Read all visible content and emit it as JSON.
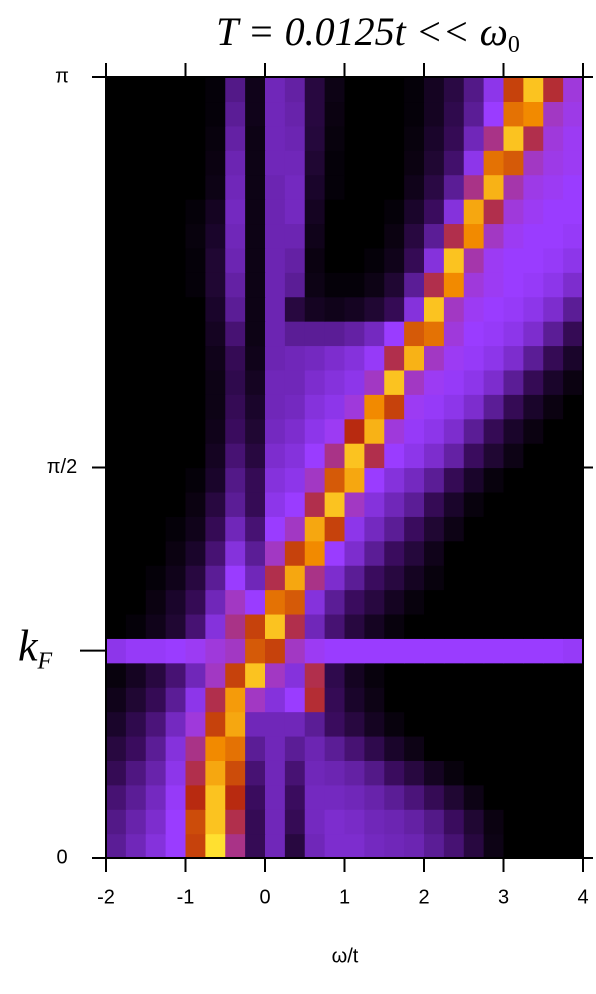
{
  "chart_data": {
    "type": "heatmap",
    "title": "T = 0.0125t << ω",
    "title_subscript": "0",
    "xlabel": "ω/t",
    "xlim": [
      -2,
      4
    ],
    "xticks": [
      -2,
      -1,
      0,
      1,
      2,
      3,
      4
    ],
    "ylim": [
      0,
      3.14159
    ],
    "yticks": [
      0,
      {
        "value": 1.5708,
        "label": "π/2"
      },
      {
        "value": 3.14159,
        "label": "π"
      }
    ],
    "annotations": [
      {
        "text": "k",
        "subscript": "F",
        "y": 0.834
      }
    ],
    "colormap": [
      {
        "value": 0,
        "color": "#000000"
      },
      {
        "value": 0.22,
        "color": "#3a0c5e"
      },
      {
        "value": 0.45,
        "color": "#9a3cff"
      },
      {
        "value": 0.65,
        "color": "#b82a10"
      },
      {
        "value": 0.85,
        "color": "#f28a00"
      },
      {
        "value": 1,
        "color": "#ffe030"
      }
    ],
    "z": [
      [
        0.3,
        0.35,
        0.4,
        0.45,
        0.7,
        1.0,
        0.55,
        0.2,
        0.35,
        0.15,
        0.35,
        0.38,
        0.38,
        0.36,
        0.35,
        0.34,
        0.3,
        0.25,
        0.15,
        0.05,
        0,
        0,
        0,
        0
      ],
      [
        0.28,
        0.33,
        0.38,
        0.45,
        0.72,
        0.95,
        0.6,
        0.2,
        0.35,
        0.2,
        0.36,
        0.38,
        0.37,
        0.35,
        0.34,
        0.32,
        0.28,
        0.22,
        0.12,
        0.04,
        0,
        0,
        0,
        0
      ],
      [
        0.25,
        0.3,
        0.36,
        0.44,
        0.65,
        0.95,
        0.65,
        0.22,
        0.35,
        0.22,
        0.36,
        0.36,
        0.35,
        0.33,
        0.3,
        0.26,
        0.2,
        0.12,
        0.05,
        0,
        0,
        0,
        0,
        0
      ],
      [
        0.2,
        0.27,
        0.33,
        0.42,
        0.6,
        0.9,
        0.72,
        0.25,
        0.35,
        0.25,
        0.35,
        0.34,
        0.32,
        0.28,
        0.22,
        0.15,
        0.08,
        0.03,
        0,
        0,
        0,
        0,
        0,
        0
      ],
      [
        0.15,
        0.22,
        0.3,
        0.4,
        0.55,
        0.85,
        0.8,
        0.3,
        0.35,
        0.3,
        0.34,
        0.3,
        0.25,
        0.18,
        0.1,
        0.05,
        0,
        0,
        0,
        0,
        0,
        0,
        0,
        0
      ],
      [
        0.1,
        0.18,
        0.26,
        0.36,
        0.48,
        0.7,
        0.9,
        0.35,
        0.35,
        0.35,
        0.3,
        0.22,
        0.15,
        0.08,
        0.03,
        0,
        0,
        0,
        0,
        0,
        0,
        0,
        0,
        0
      ],
      [
        0.06,
        0.12,
        0.2,
        0.3,
        0.42,
        0.6,
        0.88,
        0.5,
        0.4,
        0.45,
        0.62,
        0.2,
        0.1,
        0.05,
        0,
        0,
        0,
        0,
        0,
        0,
        0,
        0,
        0,
        0
      ],
      [
        0.03,
        0.08,
        0.15,
        0.25,
        0.35,
        0.5,
        0.7,
        0.95,
        0.5,
        0.4,
        0.6,
        0.18,
        0.08,
        0.03,
        0,
        0,
        0,
        0,
        0,
        0,
        0,
        0,
        0,
        0
      ],
      [
        0.42,
        0.44,
        0.44,
        0.45,
        0.46,
        0.48,
        0.5,
        0.75,
        0.7,
        0.5,
        0.46,
        0.45,
        0.45,
        0.45,
        0.45,
        0.45,
        0.45,
        0.45,
        0.45,
        0.45,
        0.45,
        0.45,
        0.45,
        0.44
      ],
      [
        0,
        0.02,
        0.06,
        0.12,
        0.25,
        0.4,
        0.55,
        0.7,
        0.95,
        0.6,
        0.35,
        0.25,
        0.15,
        0.08,
        0.03,
        0,
        0,
        0,
        0,
        0,
        0,
        0,
        0,
        0
      ],
      [
        0,
        0,
        0.04,
        0.1,
        0.2,
        0.35,
        0.5,
        0.45,
        0.8,
        0.75,
        0.4,
        0.3,
        0.22,
        0.15,
        0.08,
        0.03,
        0,
        0,
        0,
        0,
        0,
        0,
        0,
        0
      ],
      [
        0,
        0,
        0.02,
        0.06,
        0.15,
        0.3,
        0.45,
        0.35,
        0.6,
        0.9,
        0.55,
        0.38,
        0.3,
        0.22,
        0.15,
        0.08,
        0.03,
        0,
        0,
        0,
        0,
        0,
        0,
        0
      ],
      [
        0,
        0,
        0,
        0.04,
        0.1,
        0.25,
        0.4,
        0.3,
        0.5,
        0.7,
        0.85,
        0.45,
        0.38,
        0.3,
        0.22,
        0.14,
        0.06,
        0,
        0,
        0,
        0,
        0,
        0,
        0
      ],
      [
        0,
        0,
        0,
        0.02,
        0.06,
        0.2,
        0.35,
        0.25,
        0.45,
        0.5,
        0.9,
        0.7,
        0.42,
        0.36,
        0.3,
        0.22,
        0.12,
        0.05,
        0,
        0,
        0,
        0,
        0,
        0
      ],
      [
        0,
        0,
        0,
        0,
        0.04,
        0.15,
        0.3,
        0.2,
        0.42,
        0.45,
        0.6,
        0.95,
        0.5,
        0.4,
        0.35,
        0.3,
        0.2,
        0.1,
        0.03,
        0,
        0,
        0,
        0,
        0
      ],
      [
        0,
        0,
        0,
        0,
        0.02,
        0.1,
        0.28,
        0.2,
        0.4,
        0.42,
        0.5,
        0.75,
        0.9,
        0.45,
        0.4,
        0.36,
        0.3,
        0.2,
        0.1,
        0.03,
        0,
        0,
        0,
        0
      ],
      [
        0,
        0,
        0,
        0,
        0,
        0.08,
        0.25,
        0.15,
        0.38,
        0.4,
        0.45,
        0.55,
        0.95,
        0.6,
        0.45,
        0.42,
        0.38,
        0.32,
        0.22,
        0.12,
        0.05,
        0,
        0,
        0
      ],
      [
        0,
        0,
        0,
        0,
        0,
        0.06,
        0.22,
        0.12,
        0.36,
        0.38,
        0.42,
        0.46,
        0.65,
        0.92,
        0.48,
        0.44,
        0.42,
        0.38,
        0.3,
        0.2,
        0.1,
        0.04,
        0,
        0
      ],
      [
        0,
        0,
        0,
        0,
        0,
        0.05,
        0.2,
        0.1,
        0.35,
        0.36,
        0.4,
        0.42,
        0.48,
        0.85,
        0.7,
        0.46,
        0.44,
        0.42,
        0.38,
        0.3,
        0.2,
        0.1,
        0.04,
        0
      ],
      [
        0,
        0,
        0,
        0,
        0,
        0.05,
        0.18,
        0.08,
        0.35,
        0.35,
        0.38,
        0.4,
        0.42,
        0.5,
        0.95,
        0.5,
        0.46,
        0.44,
        0.42,
        0.38,
        0.3,
        0.2,
        0.1,
        0.04
      ],
      [
        0,
        0,
        0,
        0,
        0,
        0.06,
        0.2,
        0.06,
        0.34,
        0.35,
        0.36,
        0.38,
        0.4,
        0.44,
        0.6,
        0.92,
        0.5,
        0.46,
        0.44,
        0.42,
        0.38,
        0.3,
        0.2,
        0.1
      ],
      [
        0,
        0,
        0,
        0,
        0,
        0.08,
        0.25,
        0.05,
        0.34,
        0.3,
        0.3,
        0.3,
        0.32,
        0.36,
        0.45,
        0.75,
        0.8,
        0.48,
        0.45,
        0.44,
        0.42,
        0.38,
        0.3,
        0.2
      ],
      [
        0,
        0,
        0,
        0,
        0,
        0.1,
        0.3,
        0.05,
        0.34,
        0.15,
        0.08,
        0.06,
        0.08,
        0.12,
        0.2,
        0.4,
        0.95,
        0.5,
        0.46,
        0.45,
        0.44,
        0.42,
        0.38,
        0.3
      ],
      [
        0,
        0,
        0,
        0,
        0.02,
        0.12,
        0.32,
        0.05,
        0.34,
        0.3,
        0.05,
        0.02,
        0.02,
        0.05,
        0.12,
        0.3,
        0.6,
        0.85,
        0.48,
        0.46,
        0.45,
        0.44,
        0.42,
        0.38
      ],
      [
        0,
        0,
        0,
        0,
        0.02,
        0.12,
        0.34,
        0.05,
        0.34,
        0.32,
        0.04,
        0,
        0,
        0.02,
        0.06,
        0.2,
        0.4,
        0.95,
        0.52,
        0.46,
        0.45,
        0.45,
        0.44,
        0.42
      ],
      [
        0,
        0,
        0,
        0,
        0.03,
        0.1,
        0.35,
        0.05,
        0.34,
        0.34,
        0.06,
        0,
        0,
        0,
        0.04,
        0.15,
        0.3,
        0.6,
        0.85,
        0.5,
        0.46,
        0.45,
        0.45,
        0.44
      ],
      [
        0,
        0,
        0,
        0,
        0.02,
        0.08,
        0.36,
        0.05,
        0.34,
        0.36,
        0.08,
        0,
        0,
        0,
        0.02,
        0.1,
        0.22,
        0.4,
        0.9,
        0.6,
        0.48,
        0.46,
        0.45,
        0.45
      ],
      [
        0,
        0,
        0,
        0,
        0,
        0.05,
        0.35,
        0.05,
        0.34,
        0.36,
        0.1,
        0.02,
        0,
        0,
        0,
        0.06,
        0.16,
        0.3,
        0.55,
        0.92,
        0.52,
        0.47,
        0.46,
        0.45
      ],
      [
        0,
        0,
        0,
        0,
        0,
        0.04,
        0.34,
        0.05,
        0.35,
        0.35,
        0.12,
        0.02,
        0,
        0,
        0,
        0.04,
        0.12,
        0.24,
        0.42,
        0.8,
        0.75,
        0.5,
        0.47,
        0.46
      ],
      [
        0,
        0,
        0,
        0,
        0,
        0.03,
        0.32,
        0.05,
        0.35,
        0.34,
        0.14,
        0.03,
        0,
        0,
        0,
        0.03,
        0.1,
        0.2,
        0.35,
        0.55,
        0.95,
        0.6,
        0.48,
        0.46
      ],
      [
        0,
        0,
        0,
        0,
        0,
        0.02,
        0.3,
        0.06,
        0.35,
        0.33,
        0.15,
        0.04,
        0,
        0,
        0,
        0.02,
        0.08,
        0.18,
        0.3,
        0.45,
        0.8,
        0.85,
        0.5,
        0.47
      ],
      [
        0,
        0,
        0,
        0,
        0,
        0.02,
        0.28,
        0.06,
        0.35,
        0.32,
        0.15,
        0.05,
        0,
        0,
        0,
        0.02,
        0.08,
        0.16,
        0.28,
        0.42,
        0.7,
        0.95,
        0.62,
        0.48
      ]
    ]
  }
}
